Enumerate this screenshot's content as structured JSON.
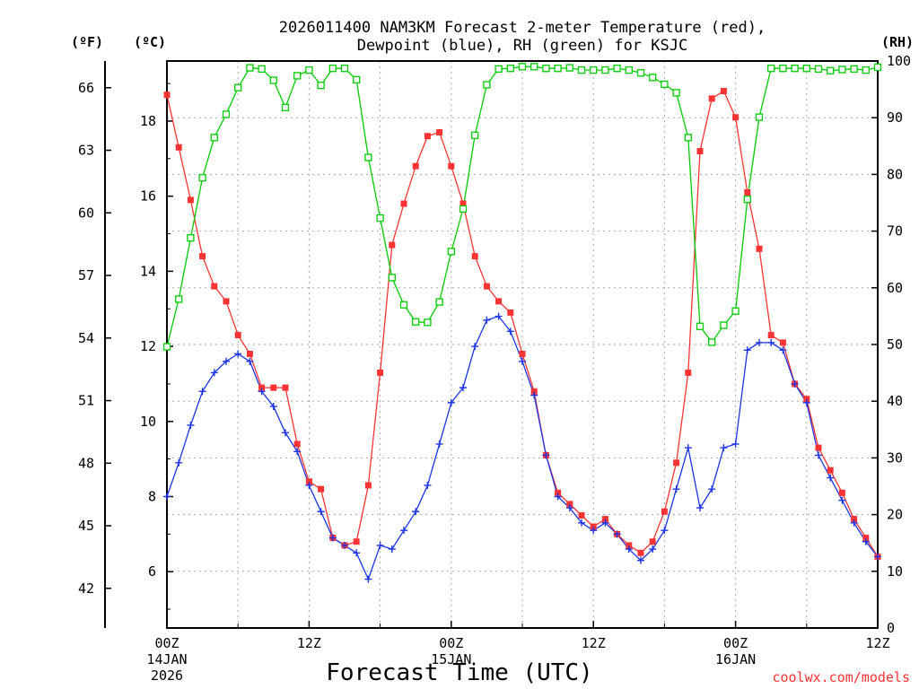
{
  "chart_data": {
    "type": "line",
    "title": [
      "2026011400 NAM3KM Forecast 2-meter Temperature (red),",
      "Dewpoint (blue), RH (green) for KSJC"
    ],
    "xlabel": "Forecast Time (UTC)",
    "credit": "coolwx.com/models",
    "x_hours": [
      0,
      1,
      2,
      3,
      4,
      5,
      6,
      7,
      8,
      9,
      10,
      11,
      12,
      13,
      14,
      15,
      16,
      17,
      18,
      19,
      20,
      21,
      22,
      23,
      24,
      25,
      26,
      27,
      28,
      29,
      30,
      31,
      32,
      33,
      34,
      35,
      36,
      37,
      38,
      39,
      40,
      41,
      42,
      43,
      44,
      45,
      46,
      47,
      48,
      49,
      50,
      51,
      52,
      53,
      54,
      55,
      56,
      57,
      58,
      59,
      60
    ],
    "xlim": [
      0,
      60
    ],
    "x_ticks": [
      {
        "hour": 0,
        "label": "00Z",
        "date": "14JAN",
        "year": "2026"
      },
      {
        "hour": 12,
        "label": "12Z",
        "date": "",
        "year": ""
      },
      {
        "hour": 24,
        "label": "00Z",
        "date": "15JAN",
        "year": ""
      },
      {
        "hour": 36,
        "label": "12Z",
        "date": "",
        "year": ""
      },
      {
        "hour": 48,
        "label": "00Z",
        "date": "16JAN",
        "year": ""
      },
      {
        "hour": 60,
        "label": "12Z",
        "date": "",
        "year": ""
      }
    ],
    "left_outer_axis": {
      "unit": "(ºF)",
      "ticks": [
        42,
        45,
        48,
        51,
        54,
        57,
        60,
        63,
        66
      ]
    },
    "left_axis": {
      "unit": "(ºC)",
      "range": [
        4.5,
        19.6
      ],
      "ticks": [
        6,
        8,
        10,
        12,
        14,
        16,
        18
      ]
    },
    "right_axis": {
      "unit": "(RH)",
      "range": [
        0,
        100
      ],
      "ticks": [
        0,
        10,
        20,
        30,
        40,
        50,
        60,
        70,
        80,
        90,
        100
      ]
    },
    "series": [
      {
        "name": "Temperature",
        "unit": "°C",
        "axis": "left",
        "color": "#ff3333",
        "marker": "filled-square",
        "values": [
          18.7,
          17.3,
          15.9,
          14.4,
          13.6,
          13.2,
          12.3,
          11.8,
          10.9,
          10.9,
          10.9,
          9.4,
          8.4,
          8.2,
          6.9,
          6.7,
          6.8,
          8.3,
          11.3,
          14.7,
          15.8,
          16.8,
          17.6,
          17.7,
          16.8,
          15.8,
          14.4,
          13.6,
          13.2,
          12.9,
          11.8,
          10.8,
          9.1,
          8.1,
          7.8,
          7.5,
          7.2,
          7.4,
          7.0,
          6.7,
          6.5,
          6.8,
          7.6,
          8.9,
          11.3,
          17.2,
          18.6,
          18.8,
          18.1,
          16.1,
          14.6,
          12.3,
          12.1,
          11.0,
          10.6,
          9.3,
          8.7,
          8.1,
          7.4,
          6.9,
          6.4
        ]
      },
      {
        "name": "Dewpoint",
        "unit": "°C",
        "axis": "left",
        "color": "#1a34e6",
        "marker": "plus",
        "values": [
          8.0,
          8.9,
          9.9,
          10.8,
          11.3,
          11.6,
          11.8,
          11.6,
          10.8,
          10.4,
          9.7,
          9.2,
          8.3,
          7.6,
          6.9,
          6.7,
          6.5,
          5.8,
          6.7,
          6.6,
          7.1,
          7.6,
          8.3,
          9.4,
          10.5,
          10.9,
          12.0,
          12.7,
          12.8,
          12.4,
          11.6,
          10.7,
          9.1,
          8.0,
          7.7,
          7.3,
          7.1,
          7.3,
          7.0,
          6.6,
          6.3,
          6.6,
          7.1,
          8.2,
          9.3,
          7.7,
          8.2,
          9.3,
          9.4,
          11.9,
          12.1,
          12.1,
          11.9,
          11.0,
          10.5,
          9.1,
          8.5,
          7.9,
          7.3,
          6.8,
          6.4
        ]
      },
      {
        "name": "RH",
        "unit": "%",
        "axis": "right",
        "color": "#00cc00",
        "marker": "hollow-square",
        "values": [
          49.6,
          58.0,
          68.8,
          79.4,
          86.5,
          90.6,
          95.3,
          98.8,
          98.6,
          96.6,
          91.8,
          97.4,
          98.4,
          95.7,
          98.7,
          98.7,
          96.7,
          83.0,
          72.3,
          61.8,
          57.0,
          54.0,
          53.9,
          57.5,
          66.4,
          73.9,
          86.9,
          95.8,
          98.6,
          98.7,
          99.0,
          99.0,
          98.7,
          98.7,
          98.8,
          98.4,
          98.4,
          98.4,
          98.7,
          98.4,
          97.9,
          97.1,
          95.9,
          94.4,
          86.5,
          53.2,
          50.4,
          53.4,
          55.9,
          75.6,
          90.1,
          98.7,
          98.7,
          98.7,
          98.7,
          98.6,
          98.3,
          98.5,
          98.6,
          98.4,
          98.9
        ]
      }
    ]
  }
}
